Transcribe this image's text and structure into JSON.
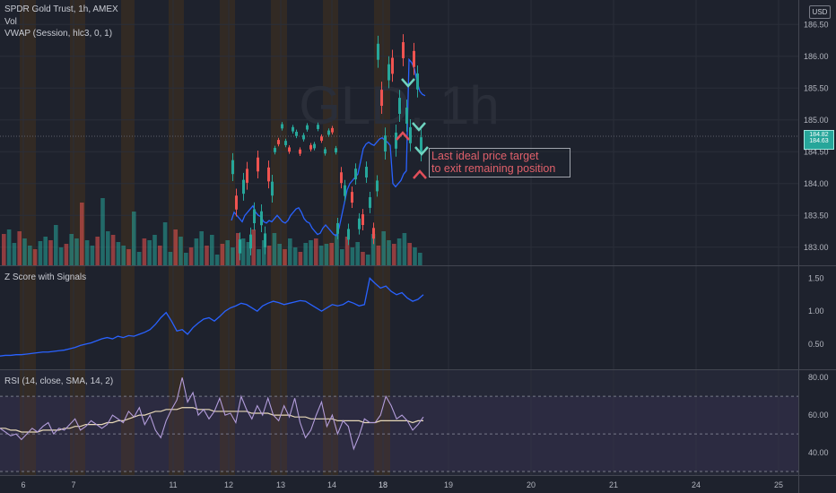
{
  "header": {
    "symbol_line": "SPDR Gold Trust, 1h, AMEX",
    "vol_label": "Vol",
    "vwap_label": "VWAP (Session, hlc3, 0, 1)",
    "currency": "USD",
    "watermark": "GLD, 1h"
  },
  "annotation": {
    "line1": "Last ideal price target",
    "line2": "to exit remaining position"
  },
  "price_tag": {
    "lines": [
      "184.82",
      "184.63"
    ]
  },
  "colors": {
    "up": "#26a69a",
    "down": "#ef5350",
    "vwap": "#2962ff",
    "zscore": "#2962ff",
    "rsi": "#b39ddb",
    "rsi_ma": "#e8d9b8",
    "grid": "#2a2e39",
    "session": "#3a2e22",
    "background": "#1e222d"
  },
  "chart_data": [
    {
      "type": "candlestick",
      "title": "SPDR Gold Trust, 1h, AMEX",
      "ylim": [
        182.8,
        186.8
      ],
      "y_ticks": [
        183.0,
        183.5,
        184.0,
        184.5,
        185.0,
        185.5,
        186.0,
        186.5
      ],
      "x_ticks": [
        "6",
        "7",
        "11",
        "12",
        "13",
        "14",
        "18",
        "19",
        "20",
        "21",
        "24",
        "25"
      ],
      "series": [
        {
          "name": "VWAP (Session, hlc3, 0, 1)",
          "values": [
            183.42,
            183.55,
            183.5,
            183.45,
            183.4,
            183.5,
            183.55,
            183.6,
            183.65,
            183.55,
            183.5,
            183.48,
            183.4,
            183.38,
            183.42,
            183.4,
            183.45,
            183.5,
            183.45,
            183.4,
            183.38,
            183.42,
            183.5,
            183.55,
            183.6,
            183.62,
            183.55,
            183.45,
            183.4,
            183.38,
            183.3,
            183.25,
            183.2,
            183.22,
            183.3,
            183.35,
            183.3,
            183.25,
            183.2,
            183.18,
            183.3,
            183.5,
            183.7,
            183.9,
            184.0,
            184.05,
            184.1,
            184.15,
            184.35,
            184.55,
            184.62,
            184.65,
            184.62,
            184.6,
            184.65,
            184.7,
            184.72,
            184.68,
            184.65,
            184.6,
            184.0,
            183.95,
            184.0,
            184.05,
            184.15,
            184.2,
            185.95,
            185.9,
            185.8,
            185.6,
            185.45,
            185.4,
            185.38
          ]
        }
      ]
    },
    {
      "type": "line",
      "title": "Z Score with Signals",
      "ylim": [
        0.2,
        1.6
      ],
      "y_ticks": [
        0.5,
        1.0,
        1.5
      ],
      "series": [
        {
          "name": "Z Score",
          "values": [
            0.32,
            0.33,
            0.33,
            0.34,
            0.34,
            0.35,
            0.36,
            0.37,
            0.38,
            0.38,
            0.39,
            0.4,
            0.41,
            0.43,
            0.45,
            0.48,
            0.5,
            0.52,
            0.55,
            0.58,
            0.6,
            0.58,
            0.62,
            0.6,
            0.63,
            0.62,
            0.65,
            0.68,
            0.72,
            0.8,
            0.9,
            0.98,
            0.85,
            0.7,
            0.72,
            0.65,
            0.75,
            0.82,
            0.88,
            0.9,
            0.85,
            0.92,
            1.0,
            1.05,
            1.08,
            1.12,
            1.1,
            1.05,
            1.0,
            1.08,
            1.12,
            1.15,
            1.13,
            1.1,
            1.12,
            1.14,
            1.16,
            1.15,
            1.1,
            1.05,
            1.0,
            1.05,
            1.1,
            1.08,
            1.1,
            1.15,
            1.12,
            1.08,
            1.1,
            1.5,
            1.42,
            1.35,
            1.38,
            1.3,
            1.25,
            1.28,
            1.2,
            1.15,
            1.18,
            1.25
          ]
        }
      ]
    },
    {
      "type": "line",
      "title": "RSI (14, close, SMA, 14, 2)",
      "ylim": [
        30,
        82
      ],
      "y_ticks": [
        40.0,
        60.0,
        80.0
      ],
      "bands": [
        70,
        50,
        30
      ],
      "series": [
        {
          "name": "RSI",
          "values": [
            53,
            51,
            49,
            50,
            47,
            50,
            53,
            51,
            54,
            56,
            50,
            53,
            52,
            55,
            58,
            52,
            54,
            57,
            55,
            53,
            55,
            60,
            58,
            56,
            62,
            59,
            64,
            55,
            60,
            52,
            48,
            57,
            63,
            68,
            80,
            67,
            72,
            60,
            63,
            58,
            62,
            69,
            60,
            61,
            56,
            70,
            63,
            58,
            65,
            60,
            69,
            60,
            57,
            65,
            59,
            69,
            56,
            48,
            52,
            60,
            67,
            54,
            60,
            50,
            57,
            54,
            42,
            49,
            58,
            56,
            56,
            60,
            70,
            65,
            58,
            60,
            57,
            52,
            55,
            59
          ]
        },
        {
          "name": "RSI MA",
          "values": [
            53,
            53,
            52,
            52,
            51,
            51,
            51,
            51,
            52,
            52,
            52,
            52,
            53,
            53,
            54,
            54,
            55,
            55,
            55,
            55,
            56,
            56,
            57,
            57,
            58,
            59,
            60,
            60,
            61,
            62,
            62,
            63,
            63,
            63,
            64,
            64,
            64,
            63,
            63,
            63,
            62,
            62,
            62,
            62,
            62,
            62,
            62,
            61,
            61,
            61,
            61,
            60,
            60,
            60,
            60,
            59,
            59,
            59,
            58,
            58,
            58,
            58,
            58,
            57,
            57,
            57,
            57,
            57,
            56,
            56,
            56,
            57,
            57,
            57,
            57,
            57,
            57,
            56,
            57,
            57
          ]
        }
      ]
    },
    {
      "type": "bar",
      "title": "Vol",
      "values": [
        35,
        40,
        25,
        38,
        30,
        22,
        18,
        27,
        32,
        28,
        45,
        20,
        24,
        35,
        30,
        70,
        28,
        22,
        32,
        75,
        38,
        34,
        26,
        22,
        18,
        60,
        15,
        30,
        28,
        34,
        22,
        48,
        15,
        40,
        32,
        14,
        20,
        30,
        38,
        22,
        34,
        12,
        24,
        28,
        20,
        36,
        30,
        26,
        40,
        18,
        28,
        22,
        36,
        24,
        18,
        30,
        20,
        15,
        25,
        28,
        30,
        22,
        24,
        25,
        35,
        18,
        32,
        20,
        26,
        15,
        12,
        35,
        22,
        38,
        28,
        24,
        30,
        36,
        25,
        20,
        14
      ]
    }
  ]
}
